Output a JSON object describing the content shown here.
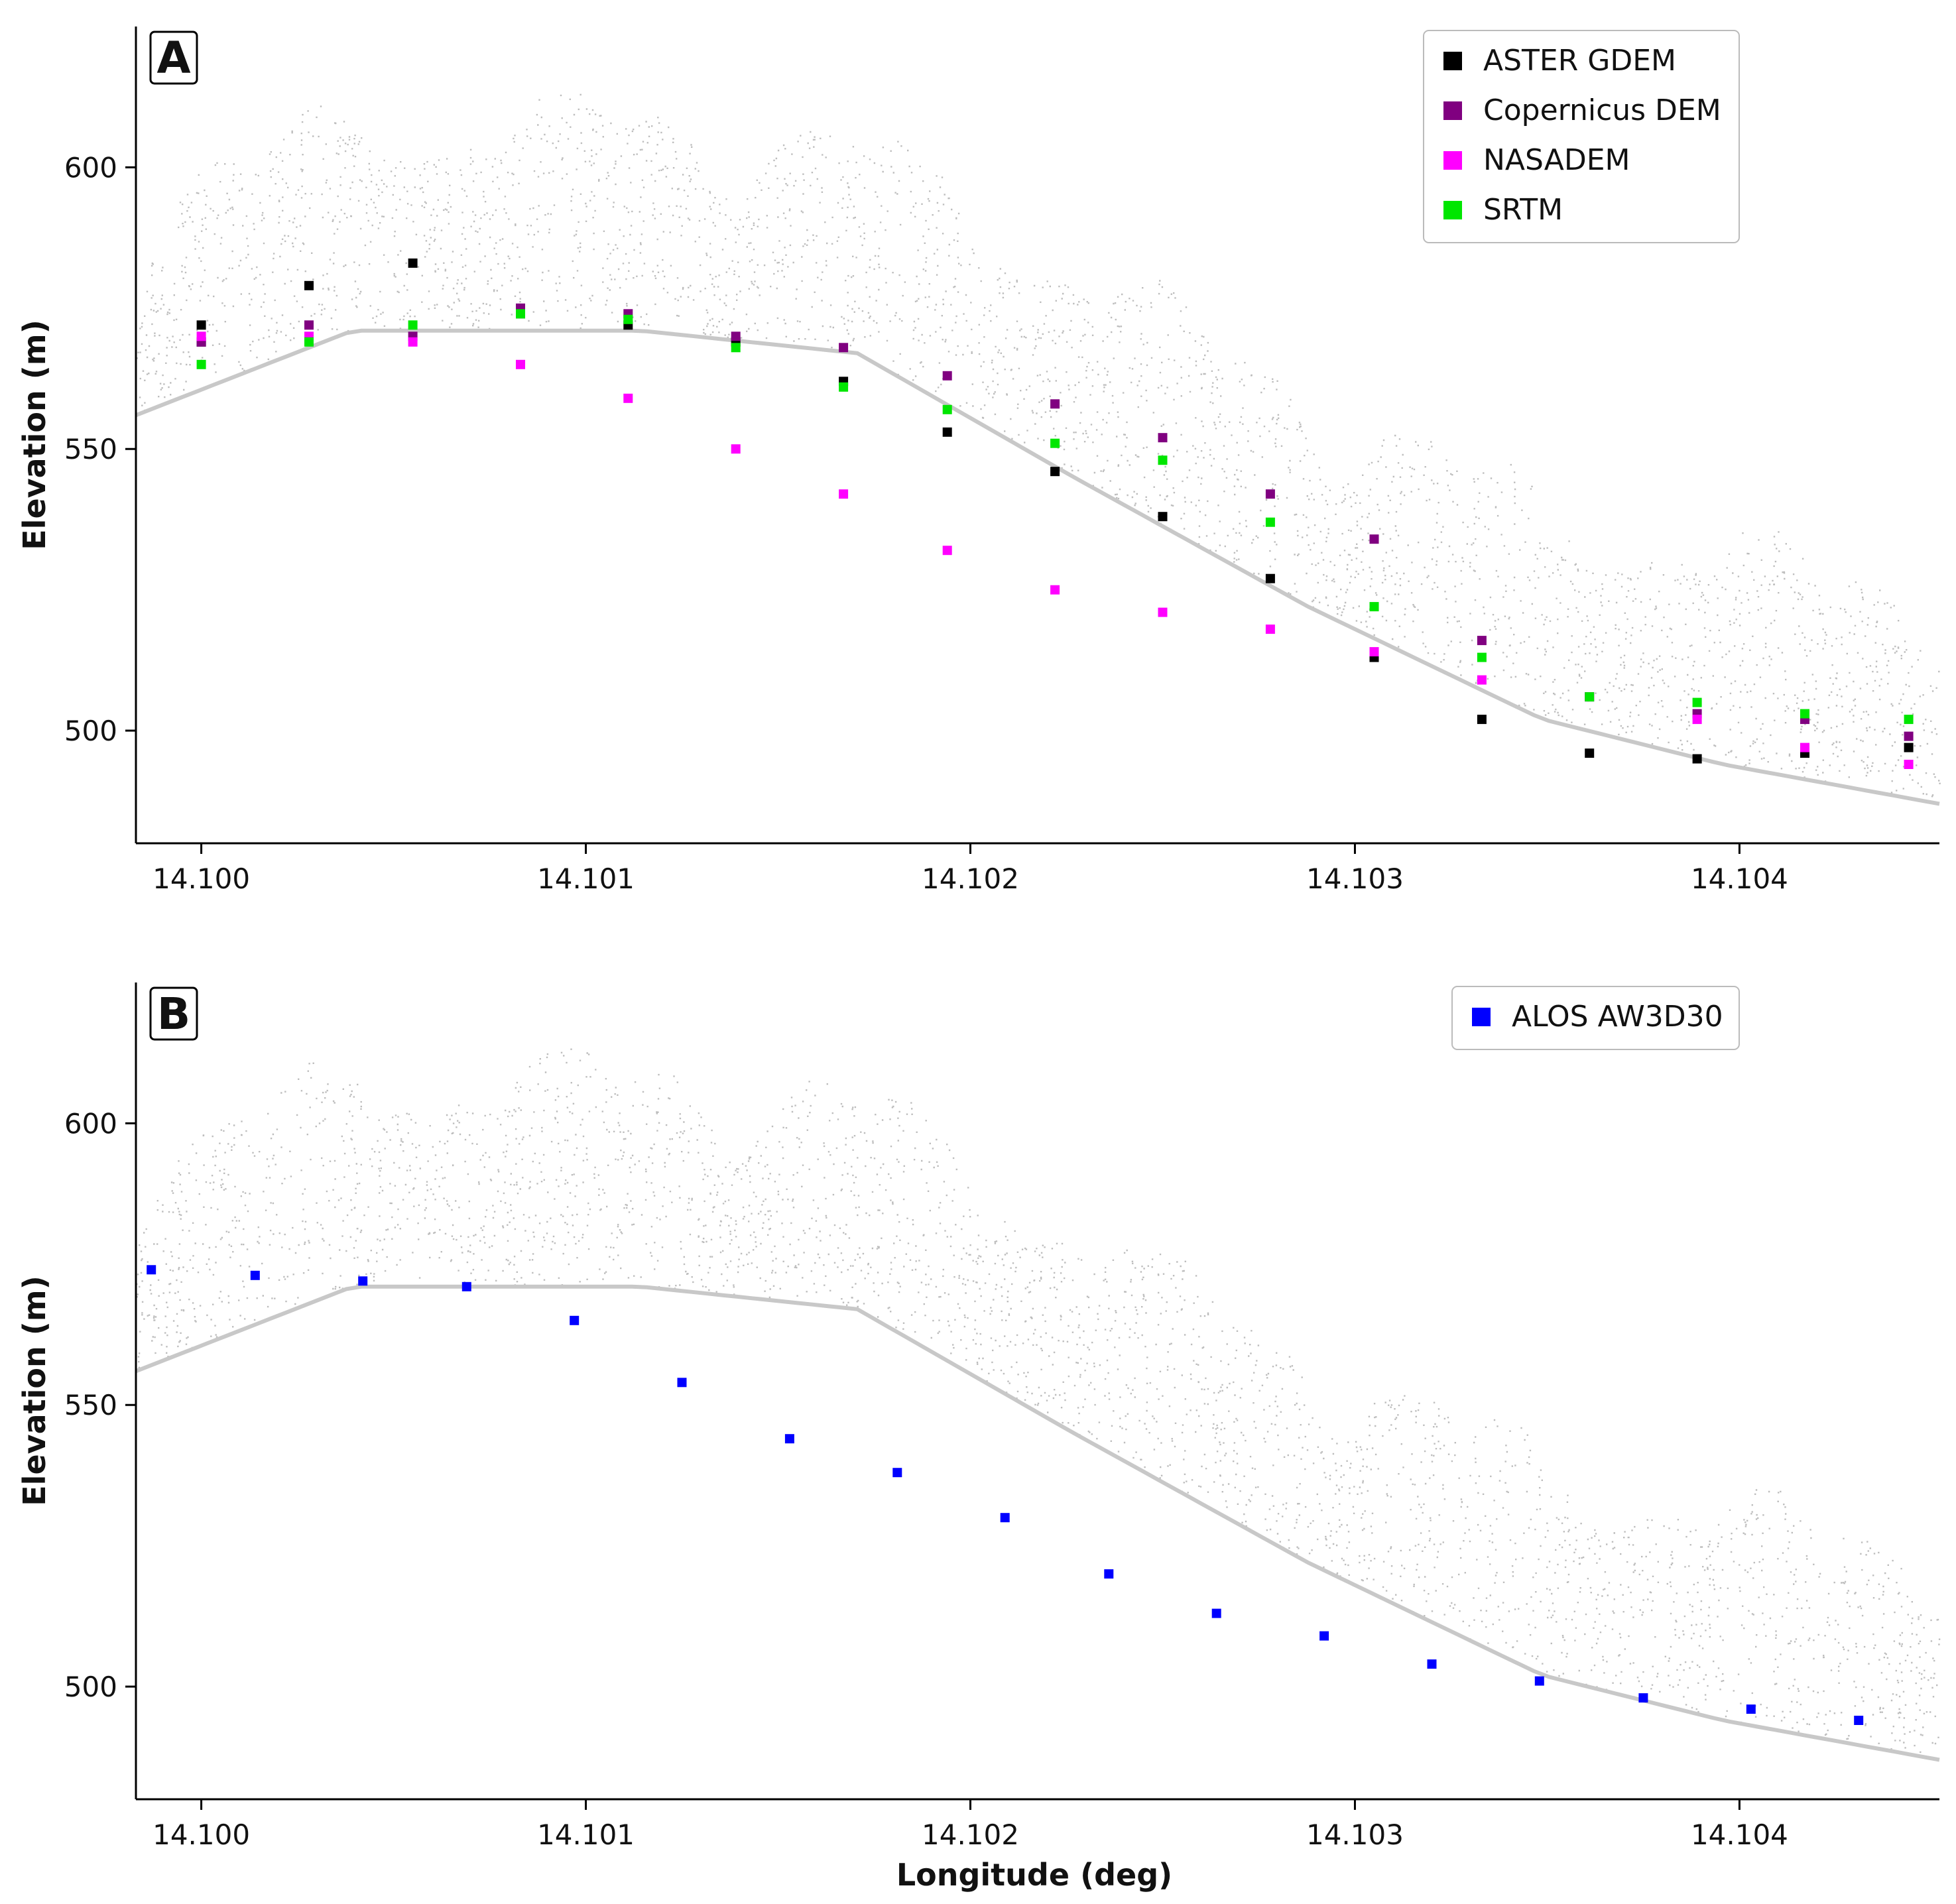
{
  "chart_data": [
    {
      "type": "scatter",
      "panel_label": "A",
      "xlabel": "",
      "ylabel": "Elevation (m)",
      "xlim": [
        14.09983,
        14.10452
      ],
      "ylim": [
        480,
        625
      ],
      "x_ticks": [
        "14.100",
        "14.101",
        "14.102",
        "14.103",
        "14.104"
      ],
      "y_ticks": [
        "500",
        "550",
        "600"
      ],
      "legend_position": "top-right",
      "background": "grey lidar point cloud (terrain and forest canopy)",
      "grid": false,
      "series": [
        {
          "name": "ASTER GDEM",
          "color": "#000000",
          "points": [
            [
              14.1,
              572
            ],
            [
              14.1,
              569
            ],
            [
              14.10028,
              579
            ],
            [
              14.10055,
              583
            ],
            [
              14.10083,
              574
            ],
            [
              14.10111,
              572
            ],
            [
              14.10139,
              569
            ],
            [
              14.10167,
              562
            ],
            [
              14.10194,
              553
            ],
            [
              14.10222,
              546
            ],
            [
              14.1025,
              538
            ],
            [
              14.10278,
              527
            ],
            [
              14.10305,
              513
            ],
            [
              14.10333,
              502
            ],
            [
              14.10361,
              496
            ],
            [
              14.10389,
              495
            ],
            [
              14.10417,
              496
            ],
            [
              14.10444,
              497
            ]
          ]
        },
        {
          "name": "Copernicus DEM",
          "color": "#800080",
          "points": [
            [
              14.1,
              569
            ],
            [
              14.10028,
              572
            ],
            [
              14.10055,
              570
            ],
            [
              14.10083,
              575
            ],
            [
              14.10111,
              574
            ],
            [
              14.10139,
              570
            ],
            [
              14.10167,
              568
            ],
            [
              14.10194,
              563
            ],
            [
              14.10222,
              558
            ],
            [
              14.1025,
              552
            ],
            [
              14.10278,
              542
            ],
            [
              14.10305,
              534
            ],
            [
              14.10333,
              516
            ],
            [
              14.10361,
              506
            ],
            [
              14.10389,
              503
            ],
            [
              14.10417,
              502
            ],
            [
              14.10444,
              499
            ]
          ]
        },
        {
          "name": "NASADEM",
          "color": "#ff00ff",
          "points": [
            [
              14.1,
              570
            ],
            [
              14.10028,
              570
            ],
            [
              14.10055,
              569
            ],
            [
              14.10083,
              565
            ],
            [
              14.10111,
              559
            ],
            [
              14.10139,
              550
            ],
            [
              14.10167,
              542
            ],
            [
              14.10194,
              532
            ],
            [
              14.10222,
              525
            ],
            [
              14.1025,
              521
            ],
            [
              14.10278,
              518
            ],
            [
              14.10305,
              514
            ],
            [
              14.10333,
              509
            ],
            [
              14.10361,
              506
            ],
            [
              14.10389,
              502
            ],
            [
              14.10417,
              497
            ],
            [
              14.10444,
              494
            ]
          ]
        },
        {
          "name": "SRTM",
          "color": "#00e600",
          "points": [
            [
              14.1,
              565
            ],
            [
              14.10028,
              569
            ],
            [
              14.10055,
              572
            ],
            [
              14.10083,
              574
            ],
            [
              14.10111,
              573
            ],
            [
              14.10139,
              568
            ],
            [
              14.10167,
              561
            ],
            [
              14.10194,
              557
            ],
            [
              14.10222,
              551
            ],
            [
              14.1025,
              548
            ],
            [
              14.10278,
              537
            ],
            [
              14.10305,
              522
            ],
            [
              14.10333,
              513
            ],
            [
              14.10361,
              506
            ],
            [
              14.10389,
              505
            ],
            [
              14.10417,
              503
            ],
            [
              14.10444,
              502
            ]
          ]
        }
      ]
    },
    {
      "type": "scatter",
      "panel_label": "B",
      "xlabel": "Longitude (deg)",
      "ylabel": "Elevation (m)",
      "xlim": [
        14.09983,
        14.10452
      ],
      "ylim": [
        480,
        625
      ],
      "x_ticks": [
        "14.100",
        "14.101",
        "14.102",
        "14.103",
        "14.104"
      ],
      "y_ticks": [
        "500",
        "550",
        "600"
      ],
      "legend_position": "top-right",
      "background": "grey lidar point cloud (terrain and forest canopy)",
      "grid": false,
      "series": [
        {
          "name": "ALOS AW3D30",
          "color": "#0000ff",
          "points": [
            [
              14.09987,
              574
            ],
            [
              14.10014,
              573
            ],
            [
              14.10042,
              572
            ],
            [
              14.10069,
              571
            ],
            [
              14.10097,
              565
            ],
            [
              14.10125,
              554
            ],
            [
              14.10153,
              544
            ],
            [
              14.10181,
              538
            ],
            [
              14.10209,
              530
            ],
            [
              14.10236,
              520
            ],
            [
              14.10264,
              513
            ],
            [
              14.10292,
              509
            ],
            [
              14.1032,
              504
            ],
            [
              14.10348,
              501
            ],
            [
              14.10375,
              498
            ],
            [
              14.10403,
              496
            ],
            [
              14.10431,
              494
            ]
          ]
        }
      ]
    }
  ]
}
